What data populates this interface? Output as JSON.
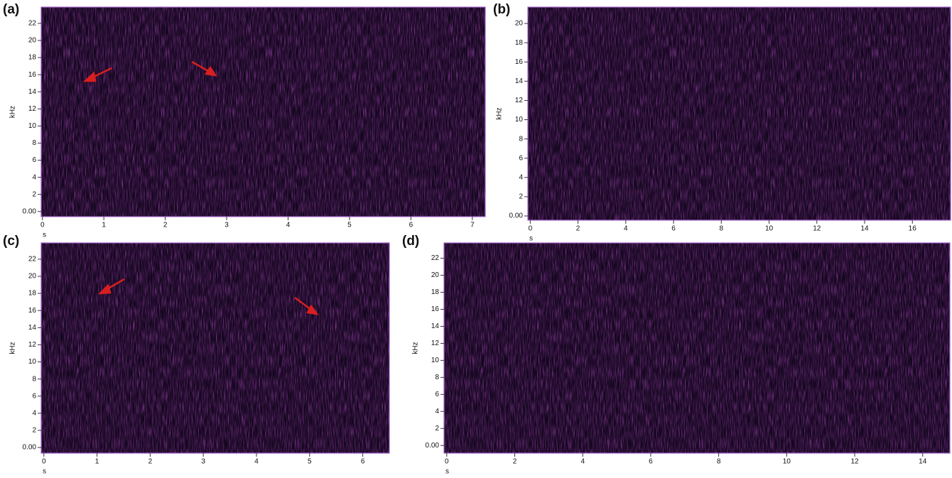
{
  "chart_data": [
    {
      "type": "spectrogram",
      "panel_label": "(a)",
      "xlabel": "s",
      "ylabel": "kHz",
      "xlim": [
        -0.02,
        7.21
      ],
      "ylim": [
        -0.6,
        23.9
      ],
      "xticks": [
        0,
        1,
        2,
        3,
        4,
        5,
        6,
        7
      ],
      "yticks": [
        {
          "value": 0,
          "label": "0.00"
        },
        2,
        4,
        6,
        8,
        10,
        12,
        14,
        16,
        18,
        20,
        22
      ]
    },
    {
      "type": "spectrogram",
      "panel_label": "(b)",
      "xlabel": "s",
      "ylabel": "kHz",
      "xlim": [
        -0.1,
        17.6
      ],
      "ylim": [
        -0.44,
        21.7
      ],
      "xticks": [
        0,
        2,
        4,
        6,
        8,
        10,
        12,
        14,
        16
      ],
      "yticks": [
        {
          "value": 0,
          "label": "0.00"
        },
        2,
        4,
        6,
        8,
        10,
        12,
        14,
        16,
        18,
        20
      ]
    },
    {
      "type": "spectrogram",
      "panel_label": "(c)",
      "xlabel": "s",
      "ylabel": "kHz",
      "xlim": [
        -0.05,
        6.5
      ],
      "ylim": [
        -0.66,
        23.9
      ],
      "xticks": [
        0,
        1,
        2,
        3,
        4,
        5,
        6
      ],
      "yticks": [
        {
          "value": 0,
          "label": "0.00"
        },
        2,
        4,
        6,
        8,
        10,
        12,
        14,
        16,
        18,
        20,
        22
      ]
    },
    {
      "type": "spectrogram",
      "panel_label": "(d)",
      "xlabel": "s",
      "ylabel": "kHz",
      "xlim": [
        -0.08,
        14.8
      ],
      "ylim": [
        -0.9,
        23.8
      ],
      "xticks": [
        0,
        2,
        4,
        6,
        8,
        10,
        12,
        14
      ],
      "yticks": [
        {
          "value": 0,
          "label": "0.00"
        },
        2,
        4,
        6,
        8,
        10,
        12,
        14,
        16,
        18,
        20,
        22
      ]
    }
  ]
}
